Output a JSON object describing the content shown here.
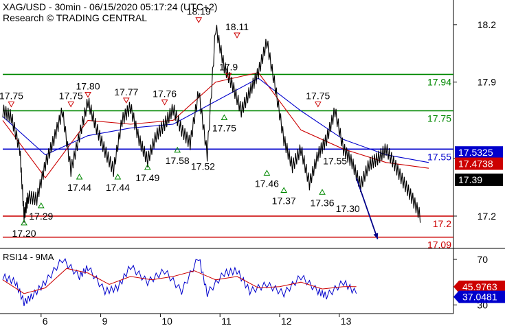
{
  "header": {
    "title": "XAG/USD - 30min - 06/15/2020 05:17:24 (UTC+2)",
    "source": "Research © TRADING CENTRAL"
  },
  "rsi_panel": {
    "title": "RSI14 - 9MA"
  },
  "colors": {
    "price": "#000000",
    "ma_fast": "#cc0000",
    "ma_slow": "#0000cc",
    "resistance": "#008800",
    "pivot": "#0000cc",
    "support": "#cc0000",
    "up_marker": "#008800",
    "down_marker": "#cc0000"
  },
  "chart_data": [
    {
      "type": "line",
      "name": "XAG/USD 30min price",
      "x_ticks": [
        "6",
        "9",
        "10",
        "11",
        "12",
        "13"
      ],
      "y_ticks": [
        17.2,
        17.5,
        17.9,
        18.2
      ],
      "ylim": [
        17.06,
        18.3
      ],
      "series": [
        {
          "name": "price",
          "x": [
            0,
            2,
            4,
            5,
            6,
            8,
            10,
            12,
            14,
            16,
            18,
            20,
            22,
            24,
            26,
            28,
            30,
            32,
            34,
            36,
            38,
            40,
            42,
            44,
            46,
            48,
            50,
            52,
            54,
            56,
            58,
            60,
            62,
            64,
            66,
            68,
            70,
            72,
            74,
            76,
            78,
            80,
            82,
            84,
            86,
            88,
            90,
            92,
            94,
            96,
            98,
            100
          ],
          "y": [
            17.75,
            17.72,
            17.55,
            17.2,
            17.3,
            17.29,
            17.47,
            17.6,
            17.75,
            17.44,
            17.62,
            17.8,
            17.66,
            17.54,
            17.44,
            17.7,
            17.77,
            17.6,
            17.49,
            17.62,
            17.68,
            17.76,
            17.65,
            17.58,
            17.85,
            17.52,
            18.19,
            17.98,
            17.88,
            17.75,
            17.85,
            17.95,
            18.11,
            17.87,
            17.6,
            17.46,
            17.55,
            17.37,
            17.52,
            17.6,
            17.75,
            17.55,
            17.48,
            17.36,
            17.47,
            17.5,
            17.55,
            17.47,
            17.38,
            17.3,
            17.2,
            17.09
          ]
        },
        {
          "name": "fast MA",
          "x": [
            0,
            10,
            20,
            30,
            40,
            50,
            60,
            70,
            80,
            90,
            100
          ],
          "y": [
            17.7,
            17.4,
            17.7,
            17.68,
            17.7,
            17.9,
            17.95,
            17.65,
            17.55,
            17.48,
            17.45
          ]
        },
        {
          "name": "slow MA",
          "x": [
            0,
            10,
            20,
            30,
            40,
            50,
            60,
            70,
            80,
            90,
            100
          ],
          "y": [
            17.72,
            17.52,
            17.62,
            17.66,
            17.68,
            17.8,
            17.92,
            17.75,
            17.6,
            17.52,
            17.48
          ]
        }
      ],
      "levels": [
        {
          "value": 17.94,
          "label": "17.94",
          "kind": "resistance"
        },
        {
          "value": 17.75,
          "label": "17.75",
          "kind": "resistance"
        },
        {
          "value": 17.55,
          "label": "17.55",
          "kind": "pivot"
        },
        {
          "value": 17.2,
          "label": "17.2",
          "kind": "support"
        },
        {
          "value": 17.09,
          "label": "17.09",
          "kind": "support"
        }
      ],
      "price_tags": [
        {
          "value": 17.5325,
          "label": "17.5325",
          "bg": "#0000cc",
          "fg": "#ffffff"
        },
        {
          "value": 17.4738,
          "label": "17.4738",
          "bg": "#cc0000",
          "fg": "#ffffff"
        },
        {
          "value": 17.39,
          "label": "17.39",
          "bg": "#000000",
          "fg": "#ffffff"
        }
      ],
      "swing_highs": [
        {
          "x": 2,
          "value": 17.75,
          "label": "17.75"
        },
        {
          "x": 16,
          "value": 17.75,
          "label": "17.75"
        },
        {
          "x": 20,
          "value": 17.8,
          "label": "17.80"
        },
        {
          "x": 29,
          "value": 17.77,
          "label": "17.77"
        },
        {
          "x": 38,
          "value": 17.76,
          "label": "17.76"
        },
        {
          "x": 46,
          "value": 18.19,
          "label": "18.19"
        },
        {
          "x": 53,
          "value": 17.9,
          "label": "17.9"
        },
        {
          "x": 55,
          "value": 18.11,
          "label": "18.11"
        },
        {
          "x": 74,
          "value": 17.75,
          "label": "17.75"
        }
      ],
      "swing_lows": [
        {
          "x": 5,
          "value": 17.2,
          "label": "17.20"
        },
        {
          "x": 9,
          "value": 17.29,
          "label": "17.29"
        },
        {
          "x": 18,
          "value": 17.44,
          "label": "17.44"
        },
        {
          "x": 27,
          "value": 17.44,
          "label": "17.44"
        },
        {
          "x": 34,
          "value": 17.49,
          "label": "17.49"
        },
        {
          "x": 41,
          "value": 17.58,
          "label": "17.58"
        },
        {
          "x": 52,
          "value": 17.75,
          "label": "17.75"
        },
        {
          "x": 62,
          "value": 17.46,
          "label": "17.46"
        },
        {
          "x": 66,
          "value": 17.37,
          "label": "17.37"
        },
        {
          "x": 75,
          "value": 17.36,
          "label": "17.36"
        }
      ],
      "extra_labels": [
        {
          "x": 47,
          "value": 17.52,
          "label": "17.52"
        },
        {
          "x": 78,
          "value": 17.55,
          "label": "17.55"
        },
        {
          "x": 81,
          "value": 17.3,
          "label": "17.30"
        }
      ],
      "forecast_arrow": {
        "x0": 83,
        "y0": 17.4,
        "x1": 88,
        "y1": 17.08
      }
    },
    {
      "type": "line",
      "name": "RSI14 - 9MA",
      "y_ticks": [
        30,
        70
      ],
      "ylim": [
        26,
        76
      ],
      "series": [
        {
          "name": "RSI14",
          "x": [
            0,
            3,
            5,
            7,
            10,
            14,
            18,
            20,
            24,
            27,
            30,
            34,
            38,
            42,
            46,
            48,
            52,
            55,
            58,
            62,
            66,
            70,
            74,
            76,
            80,
            83
          ],
          "y": [
            55,
            50,
            32,
            38,
            50,
            70,
            55,
            63,
            42,
            45,
            64,
            50,
            60,
            42,
            72,
            40,
            58,
            60,
            42,
            48,
            40,
            55,
            42,
            38,
            50,
            40
          ]
        },
        {
          "name": "MA9",
          "x": [
            0,
            5,
            10,
            15,
            20,
            25,
            30,
            35,
            40,
            45,
            50,
            55,
            60,
            65,
            70,
            75,
            80,
            83
          ],
          "y": [
            52,
            40,
            45,
            62,
            58,
            48,
            55,
            52,
            55,
            60,
            52,
            55,
            45,
            46,
            50,
            44,
            46,
            46
          ]
        }
      ],
      "value_tags": [
        {
          "value": 45.9763,
          "label": "45.9763",
          "bg": "#cc0000",
          "fg": "#ffffff"
        },
        {
          "value": 37.0481,
          "label": "37.0481",
          "bg": "#0000cc",
          "fg": "#ffffff"
        }
      ]
    }
  ]
}
